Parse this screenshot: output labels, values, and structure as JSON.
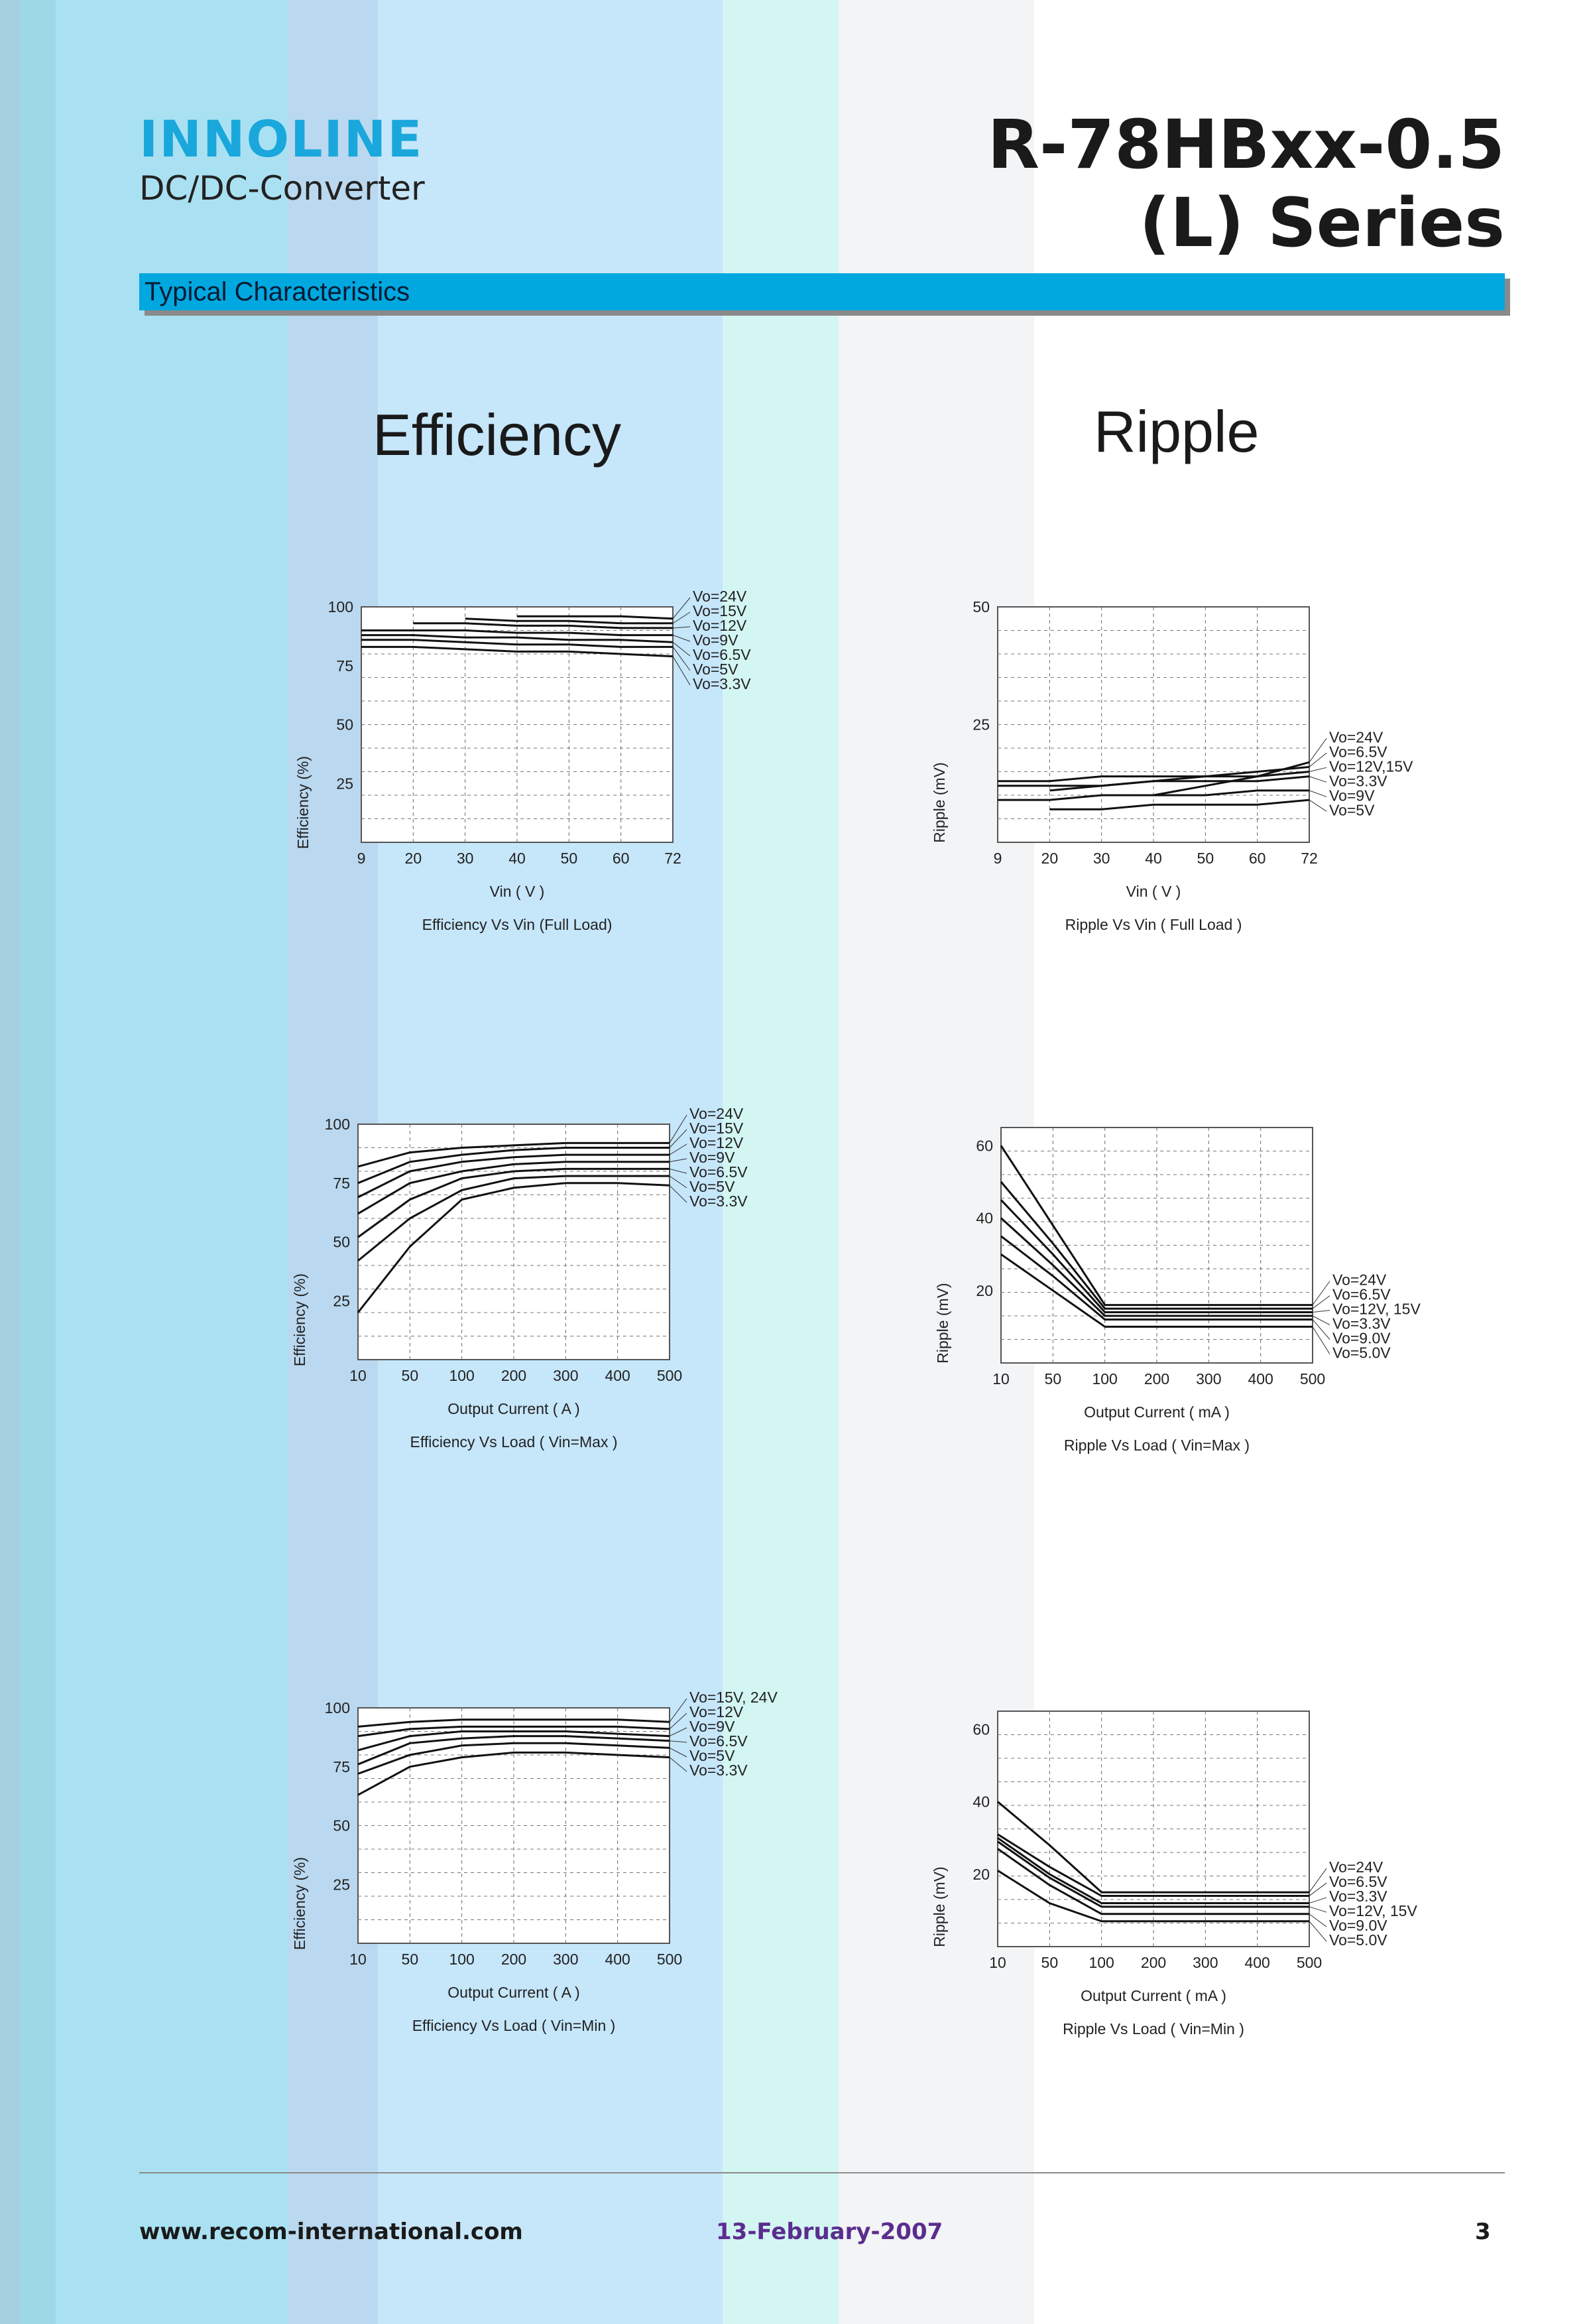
{
  "header": {
    "brand": "INNOLINE",
    "subtitle": "DC/DC-Converter",
    "series_line1": "R-78HBxx-0.5",
    "series_line2": "(L) Series"
  },
  "section_title": "Typical Characteristics",
  "columns": {
    "left_title": "Efficiency",
    "right_title": "Ripple"
  },
  "footer": {
    "url": "www.recom-international.com",
    "date": "13-February-2007",
    "page": "3"
  },
  "colors": {
    "accent": "#00a8df",
    "brand": "#1aa7dc",
    "date": "#5b2d8e"
  },
  "chart_data": [
    {
      "type": "line",
      "caption": "Efficiency  Vs Vin (Full Load)",
      "xlabel": "Vin ( V )",
      "ylabel": "Efficiency (%)",
      "x_ticks": [
        "9",
        "20",
        "30",
        "40",
        "50",
        "60",
        "72"
      ],
      "y_ticks": [
        "100",
        "75",
        "50",
        "25"
      ],
      "ylim": [
        0,
        100
      ],
      "grid": true,
      "legend_labels": [
        "Vo=24V",
        "Vo=15V",
        "Vo=12V",
        "Vo=9V",
        "Vo=6.5V",
        "Vo=5V",
        "Vo=3.3V"
      ],
      "series": [
        {
          "name": "Vo=24V",
          "x": [
            9,
            20,
            30,
            40,
            50,
            60,
            72
          ],
          "values": [
            null,
            null,
            null,
            96,
            96,
            96,
            95
          ]
        },
        {
          "name": "Vo=15V",
          "x": [
            9,
            20,
            30,
            40,
            50,
            60,
            72
          ],
          "values": [
            null,
            null,
            95,
            94,
            94,
            93,
            93
          ]
        },
        {
          "name": "Vo=12V",
          "x": [
            9,
            20,
            30,
            40,
            50,
            60,
            72
          ],
          "values": [
            null,
            93,
            93,
            92,
            92,
            91,
            91
          ]
        },
        {
          "name": "Vo=9V",
          "x": [
            9,
            20,
            30,
            40,
            50,
            60,
            72
          ],
          "values": [
            90,
            90,
            90,
            89,
            89,
            88,
            88
          ]
        },
        {
          "name": "Vo=6.5V",
          "x": [
            9,
            20,
            30,
            40,
            50,
            60,
            72
          ],
          "values": [
            88,
            88,
            87,
            87,
            86,
            86,
            85
          ]
        },
        {
          "name": "Vo=5V",
          "x": [
            9,
            20,
            30,
            40,
            50,
            60,
            72
          ],
          "values": [
            86,
            86,
            85,
            84,
            84,
            83,
            83
          ]
        },
        {
          "name": "Vo=3.3V",
          "x": [
            9,
            20,
            30,
            40,
            50,
            60,
            72
          ],
          "values": [
            83,
            83,
            82,
            81,
            81,
            80,
            79
          ]
        }
      ]
    },
    {
      "type": "line",
      "caption": "Ripple  Vs Vin ( Full Load )",
      "xlabel": "Vin ( V )",
      "ylabel": "Ripple (mV)",
      "x_ticks": [
        "9",
        "20",
        "30",
        "40",
        "50",
        "60",
        "72"
      ],
      "y_ticks": [
        "50",
        "25"
      ],
      "ylim": [
        0,
        50
      ],
      "grid": true,
      "legend_labels": [
        "Vo=24V",
        "Vo=6.5V",
        "Vo=12V,15V",
        "Vo=3.3V",
        "Vo=9V",
        "Vo=5V"
      ],
      "series": [
        {
          "name": "Vo=24V",
          "x": [
            9,
            20,
            30,
            40,
            50,
            60,
            72
          ],
          "values": [
            null,
            null,
            null,
            10,
            12,
            14,
            17
          ]
        },
        {
          "name": "Vo=6.5V",
          "x": [
            9,
            20,
            30,
            40,
            50,
            60,
            72
          ],
          "values": [
            13,
            13,
            14,
            14,
            14,
            15,
            16
          ]
        },
        {
          "name": "Vo=12V,15V",
          "x": [
            9,
            20,
            30,
            40,
            50,
            60,
            72
          ],
          "values": [
            null,
            11,
            12,
            13,
            14,
            14,
            15
          ]
        },
        {
          "name": "Vo=3.3V",
          "x": [
            9,
            20,
            30,
            40,
            50,
            60,
            72
          ],
          "values": [
            12,
            12,
            12,
            13,
            13,
            13,
            14
          ]
        },
        {
          "name": "Vo=9V",
          "x": [
            9,
            20,
            30,
            40,
            50,
            60,
            72
          ],
          "values": [
            9,
            9,
            10,
            10,
            10,
            11,
            11
          ]
        },
        {
          "name": "Vo=5V",
          "x": [
            9,
            20,
            30,
            40,
            50,
            60,
            72
          ],
          "values": [
            null,
            7,
            7,
            8,
            8,
            8,
            9
          ]
        }
      ]
    },
    {
      "type": "line",
      "caption": "Efficiency  Vs Load ( Vin=Max )",
      "xlabel": "Output Current ( A )",
      "ylabel": "Efficiency (%)",
      "x_ticks": [
        "10",
        "50",
        "100",
        "200",
        "300",
        "400",
        "500"
      ],
      "y_ticks": [
        "100",
        "75",
        "50",
        "25"
      ],
      "ylim": [
        0,
        100
      ],
      "grid": true,
      "legend_labels": [
        "Vo=24V",
        "Vo=15V",
        "Vo=12V",
        "Vo=9V",
        "Vo=6.5V",
        "Vo=5V",
        "Vo=3.3V"
      ],
      "series": [
        {
          "name": "Vo=24V",
          "x": [
            10,
            50,
            100,
            200,
            300,
            400,
            500
          ],
          "values": [
            82,
            88,
            90,
            91,
            92,
            92,
            92
          ]
        },
        {
          "name": "Vo=15V",
          "x": [
            10,
            50,
            100,
            200,
            300,
            400,
            500
          ],
          "values": [
            75,
            84,
            87,
            89,
            90,
            90,
            90
          ]
        },
        {
          "name": "Vo=12V",
          "x": [
            10,
            50,
            100,
            200,
            300,
            400,
            500
          ],
          "values": [
            69,
            80,
            84,
            86,
            87,
            87,
            87
          ]
        },
        {
          "name": "Vo=9V",
          "x": [
            10,
            50,
            100,
            200,
            300,
            400,
            500
          ],
          "values": [
            62,
            75,
            80,
            83,
            84,
            84,
            84
          ]
        },
        {
          "name": "Vo=6.5V",
          "x": [
            10,
            50,
            100,
            200,
            300,
            400,
            500
          ],
          "values": [
            52,
            68,
            77,
            80,
            81,
            81,
            81
          ]
        },
        {
          "name": "Vo=5V",
          "x": [
            10,
            50,
            100,
            200,
            300,
            400,
            500
          ],
          "values": [
            42,
            60,
            72,
            77,
            78,
            78,
            78
          ]
        },
        {
          "name": "Vo=3.3V",
          "x": [
            10,
            50,
            100,
            200,
            300,
            400,
            500
          ],
          "values": [
            20,
            48,
            68,
            73,
            75,
            75,
            74
          ]
        }
      ]
    },
    {
      "type": "line",
      "caption": "Ripple  Vs Load ( Vin=Max )",
      "xlabel": "Output Current ( mA )",
      "ylabel": "Ripple (mV)",
      "x_ticks": [
        "10",
        "50",
        "100",
        "200",
        "300",
        "400",
        "500"
      ],
      "y_ticks": [
        "60",
        "40",
        "20"
      ],
      "ylim": [
        0,
        65
      ],
      "grid": true,
      "legend_labels": [
        "Vo=24V",
        "Vo=6.5V",
        "Vo=12V, 15V",
        "Vo=3.3V",
        "Vo=9.0V",
        "Vo=5.0V"
      ],
      "series": [
        {
          "name": "Vo=24V",
          "x": [
            10,
            50,
            100,
            200,
            300,
            400,
            500
          ],
          "values": [
            60,
            38,
            16,
            16,
            16,
            16,
            16
          ]
        },
        {
          "name": "Vo=6.5V",
          "x": [
            10,
            50,
            100,
            200,
            300,
            400,
            500
          ],
          "values": [
            50,
            33,
            15,
            15,
            15,
            15,
            15
          ]
        },
        {
          "name": "Vo=12V, 15V",
          "x": [
            10,
            50,
            100,
            200,
            300,
            400,
            500
          ],
          "values": [
            45,
            30,
            14,
            14,
            14,
            14,
            14
          ]
        },
        {
          "name": "Vo=3.3V",
          "x": [
            10,
            50,
            100,
            200,
            300,
            400,
            500
          ],
          "values": [
            40,
            27,
            13,
            13,
            13,
            13,
            13
          ]
        },
        {
          "name": "Vo=9.0V",
          "x": [
            10,
            50,
            100,
            200,
            300,
            400,
            500
          ],
          "values": [
            35,
            24,
            12,
            12,
            12,
            12,
            12
          ]
        },
        {
          "name": "Vo=5.0V",
          "x": [
            10,
            50,
            100,
            200,
            300,
            400,
            500
          ],
          "values": [
            30,
            20,
            10,
            10,
            10,
            10,
            10
          ]
        }
      ]
    },
    {
      "type": "line",
      "caption": "Efficiency  Vs Load ( Vin=Min )",
      "xlabel": "Output Current ( A )",
      "ylabel": "Efficiency (%)",
      "x_ticks": [
        "10",
        "50",
        "100",
        "200",
        "300",
        "400",
        "500"
      ],
      "y_ticks": [
        "100",
        "75",
        "50",
        "25"
      ],
      "ylim": [
        0,
        100
      ],
      "grid": true,
      "legend_labels": [
        "Vo=15V, 24V",
        "Vo=12V",
        "Vo=9V",
        "Vo=6.5V",
        "Vo=5V",
        "Vo=3.3V"
      ],
      "series": [
        {
          "name": "Vo=15V, 24V",
          "x": [
            10,
            50,
            100,
            200,
            300,
            400,
            500
          ],
          "values": [
            92,
            94,
            95,
            95,
            95,
            95,
            94
          ]
        },
        {
          "name": "Vo=12V",
          "x": [
            10,
            50,
            100,
            200,
            300,
            400,
            500
          ],
          "values": [
            88,
            91,
            92,
            92,
            92,
            92,
            91
          ]
        },
        {
          "name": "Vo=9V",
          "x": [
            10,
            50,
            100,
            200,
            300,
            400,
            500
          ],
          "values": [
            82,
            88,
            90,
            90,
            90,
            89,
            88
          ]
        },
        {
          "name": "Vo=6.5V",
          "x": [
            10,
            50,
            100,
            200,
            300,
            400,
            500
          ],
          "values": [
            76,
            85,
            87,
            88,
            88,
            87,
            86
          ]
        },
        {
          "name": "Vo=5V",
          "x": [
            10,
            50,
            100,
            200,
            300,
            400,
            500
          ],
          "values": [
            72,
            80,
            84,
            85,
            85,
            84,
            83
          ]
        },
        {
          "name": "Vo=3.3V",
          "x": [
            10,
            50,
            100,
            200,
            300,
            400,
            500
          ],
          "values": [
            63,
            75,
            79,
            81,
            81,
            80,
            79
          ]
        }
      ]
    },
    {
      "type": "line",
      "caption": "Ripple  Vs Load ( Vin=Min )",
      "xlabel": "Output Current ( mA )",
      "ylabel": "Ripple (mV)",
      "x_ticks": [
        "10",
        "50",
        "100",
        "200",
        "300",
        "400",
        "500"
      ],
      "y_ticks": [
        "60",
        "40",
        "20"
      ],
      "ylim": [
        0,
        65
      ],
      "grid": true,
      "legend_labels": [
        "Vo=24V",
        "Vo=6.5V",
        "Vo=3.3V",
        "Vo=12V, 15V",
        "Vo=9.0V",
        "Vo=5.0V"
      ],
      "series": [
        {
          "name": "Vo=24V",
          "x": [
            10,
            50,
            100,
            200,
            300,
            400,
            500
          ],
          "values": [
            40,
            28,
            15,
            15,
            15,
            15,
            15
          ]
        },
        {
          "name": "Vo=6.5V",
          "x": [
            10,
            50,
            100,
            200,
            300,
            400,
            500
          ],
          "values": [
            31,
            22,
            14,
            14,
            14,
            14,
            14
          ]
        },
        {
          "name": "Vo=3.3V",
          "x": [
            10,
            50,
            100,
            200,
            300,
            400,
            500
          ],
          "values": [
            30,
            20,
            12,
            12,
            12,
            12,
            12
          ]
        },
        {
          "name": "Vo=12V, 15V",
          "x": [
            10,
            50,
            100,
            200,
            300,
            400,
            500
          ],
          "values": [
            29,
            19,
            11,
            11,
            11,
            11,
            11
          ]
        },
        {
          "name": "Vo=9.0V",
          "x": [
            10,
            50,
            100,
            200,
            300,
            400,
            500
          ],
          "values": [
            27,
            17,
            9,
            9,
            9,
            9,
            9
          ]
        },
        {
          "name": "Vo=5.0V",
          "x": [
            10,
            50,
            100,
            200,
            300,
            400,
            500
          ],
          "values": [
            21,
            12,
            7,
            7,
            7,
            7,
            7
          ]
        }
      ]
    }
  ]
}
